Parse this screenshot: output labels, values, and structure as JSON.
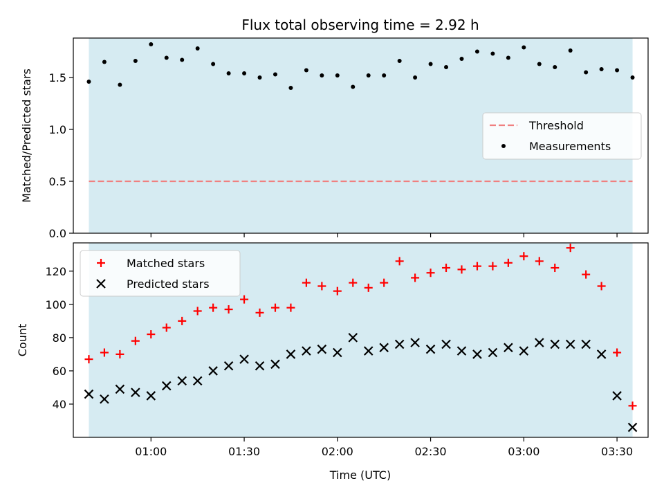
{
  "chart_data": [
    {
      "type": "scatter",
      "title": "Flux total observing time = 2.92 h",
      "xlabel": "",
      "ylabel": "Matched/Predicted stars",
      "ylim": [
        0,
        1.88
      ],
      "yticks": [
        0.0,
        0.5,
        1.0,
        1.5
      ],
      "ytick_labels": [
        "0.0",
        "0.5",
        "1.0",
        "1.5"
      ],
      "x_range": [
        "00:35",
        "03:40"
      ],
      "shaded_span": [
        "00:40",
        "03:35"
      ],
      "shade_color": "#add8e6",
      "threshold": {
        "name": "Threshold",
        "value": 0.5,
        "color": "#f08080",
        "style": "dashed"
      },
      "series": [
        {
          "name": "Measurements",
          "color": "#000000",
          "marker": "dot",
          "x": [
            "00:40",
            "00:45",
            "00:50",
            "00:55",
            "01:00",
            "01:05",
            "01:10",
            "01:15",
            "01:20",
            "01:25",
            "01:30",
            "01:35",
            "01:40",
            "01:45",
            "01:50",
            "01:55",
            "02:00",
            "02:05",
            "02:10",
            "02:15",
            "02:20",
            "02:25",
            "02:30",
            "02:35",
            "02:40",
            "02:45",
            "02:50",
            "02:55",
            "03:00",
            "03:05",
            "03:10",
            "03:15",
            "03:20",
            "03:25",
            "03:30",
            "03:35"
          ],
          "values": [
            1.46,
            1.65,
            1.43,
            1.66,
            1.82,
            1.69,
            1.67,
            1.78,
            1.63,
            1.54,
            1.54,
            1.5,
            1.53,
            1.4,
            1.57,
            1.52,
            1.52,
            1.41,
            1.52,
            1.52,
            1.66,
            1.5,
            1.63,
            1.6,
            1.68,
            1.75,
            1.73,
            1.69,
            1.79,
            1.63,
            1.6,
            1.76,
            1.55,
            1.58,
            1.57,
            1.5
          ]
        }
      ],
      "legend": {
        "position": "center-right",
        "entries": [
          "Threshold",
          "Measurements"
        ]
      }
    },
    {
      "type": "scatter",
      "title": "",
      "xlabel": "Time (UTC)",
      "ylabel": "Count",
      "ylim": [
        20,
        137
      ],
      "yticks": [
        40,
        60,
        80,
        100,
        120
      ],
      "ytick_labels": [
        "40",
        "60",
        "80",
        "100",
        "120"
      ],
      "x_range": [
        "00:35",
        "03:40"
      ],
      "xticks": [
        "01:00",
        "01:30",
        "02:00",
        "02:30",
        "03:00",
        "03:30"
      ],
      "shaded_span": [
        "00:40",
        "03:35"
      ],
      "shade_color": "#add8e6",
      "series": [
        {
          "name": "Matched stars",
          "color": "#ff0000",
          "marker": "plus",
          "x": [
            "00:40",
            "00:45",
            "00:50",
            "00:55",
            "01:00",
            "01:05",
            "01:10",
            "01:15",
            "01:20",
            "01:25",
            "01:30",
            "01:35",
            "01:40",
            "01:45",
            "01:50",
            "01:55",
            "02:00",
            "02:05",
            "02:10",
            "02:15",
            "02:20",
            "02:25",
            "02:30",
            "02:35",
            "02:40",
            "02:45",
            "02:50",
            "02:55",
            "03:00",
            "03:05",
            "03:10",
            "03:15",
            "03:20",
            "03:25",
            "03:30",
            "03:35"
          ],
          "values": [
            67,
            71,
            70,
            78,
            82,
            86,
            90,
            96,
            98,
            97,
            103,
            95,
            98,
            98,
            113,
            111,
            108,
            113,
            110,
            113,
            126,
            116,
            119,
            122,
            121,
            123,
            123,
            125,
            129,
            126,
            122,
            134,
            118,
            111,
            71,
            39
          ]
        },
        {
          "name": "Predicted stars",
          "color": "#000000",
          "marker": "x",
          "x": [
            "00:40",
            "00:45",
            "00:50",
            "00:55",
            "01:00",
            "01:05",
            "01:10",
            "01:15",
            "01:20",
            "01:25",
            "01:30",
            "01:35",
            "01:40",
            "01:45",
            "01:50",
            "01:55",
            "02:00",
            "02:05",
            "02:10",
            "02:15",
            "02:20",
            "02:25",
            "02:30",
            "02:35",
            "02:40",
            "02:45",
            "02:50",
            "02:55",
            "03:00",
            "03:05",
            "03:10",
            "03:15",
            "03:20",
            "03:25",
            "03:30",
            "03:35"
          ],
          "values": [
            46,
            43,
            49,
            47,
            45,
            51,
            54,
            54,
            60,
            63,
            67,
            63,
            64,
            70,
            72,
            73,
            71,
            80,
            72,
            74,
            76,
            77,
            73,
            76,
            72,
            70,
            71,
            74,
            72,
            77,
            76,
            76,
            76,
            70,
            45,
            26
          ]
        }
      ],
      "legend": {
        "position": "top-left",
        "entries": [
          "Matched stars",
          "Predicted stars"
        ]
      }
    }
  ]
}
